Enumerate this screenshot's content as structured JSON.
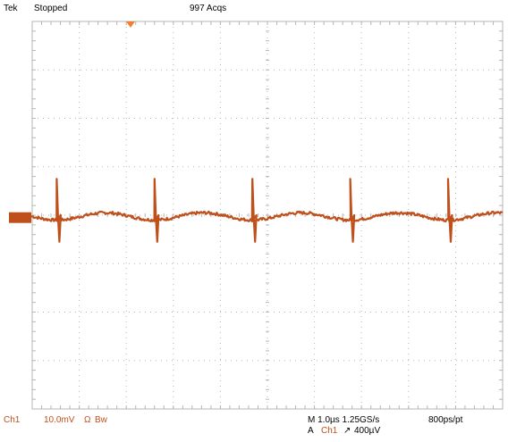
{
  "header": {
    "brand": "Tek",
    "run_state": "Stopped",
    "acquisitions": "997 Acqs"
  },
  "footer": {
    "channel": "Ch1",
    "scale": "10.0mV",
    "bandwidth_symbol": "Ω",
    "bw_limit": "Bw",
    "timebase": "M 1.0µs 1.25GS/s",
    "record": "800ps/pt",
    "trigger_mode": "A",
    "trigger_source": "Ch1",
    "trigger_slope": "↗",
    "trigger_level": "400µV"
  },
  "colors": {
    "trace": "#c0501b",
    "grid": "#b5b5b5",
    "trigger_marker": "#f08030"
  },
  "chart_data": {
    "type": "line",
    "title": "",
    "xlabel": "",
    "ylabel": "",
    "x_divisions": 10,
    "y_divisions": 8,
    "x_unit": "div",
    "y_unit": "div",
    "xlim": [
      0,
      10
    ],
    "ylim": [
      -4,
      4
    ],
    "series": [
      {
        "spike_positions_div": [
          0.52,
          2.6,
          4.68,
          6.76,
          8.84
        ],
        "baseline_div": -0.05,
        "ripple_pp_div": 0.25,
        "spike_high_div": 0.75,
        "spike_low_div": -0.55
      }
    ]
  }
}
